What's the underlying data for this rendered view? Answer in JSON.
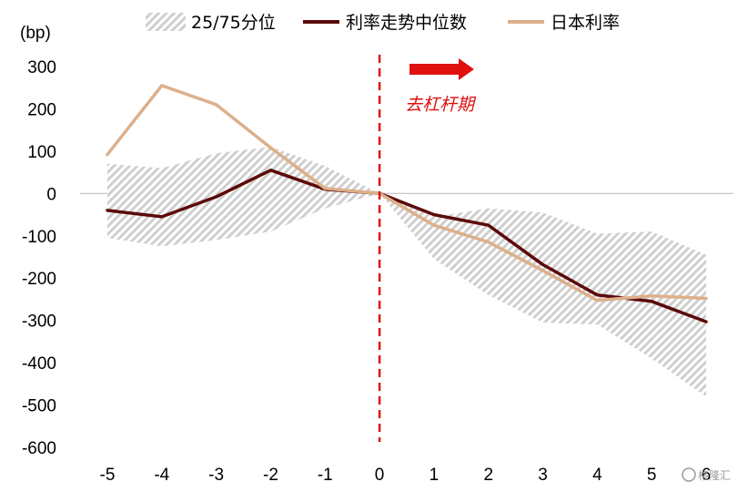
{
  "chart_data": {
    "type": "line",
    "unit_label": "(bp)",
    "x": [
      -5,
      -4,
      -3,
      -2,
      -1,
      0,
      1,
      2,
      3,
      4,
      5,
      6
    ],
    "x_tick_labels": [
      "-5",
      "-4",
      "-3",
      "-2",
      "-1",
      "0",
      "1",
      "2",
      "3",
      "4",
      "5",
      "6"
    ],
    "ylim": [
      -600,
      300
    ],
    "y_ticks": [
      300,
      200,
      100,
      0,
      -100,
      -200,
      -300,
      -400,
      -500,
      -600
    ],
    "y_tick_labels": [
      "300",
      "200",
      "100",
      "0",
      "-100",
      "-200",
      "-300",
      "-400",
      "-500",
      "-600"
    ],
    "band": {
      "name": "25/75分位",
      "color": "#c8c8c8",
      "upper": [
        70,
        60,
        95,
        110,
        65,
        0,
        -55,
        -35,
        -45,
        -95,
        -90,
        -145
      ],
      "lower": [
        -105,
        -125,
        -110,
        -90,
        -35,
        0,
        -155,
        -240,
        -305,
        -310,
        -390,
        -480
      ]
    },
    "series": [
      {
        "name": "利率走势中位数",
        "color": "#5c0a0a",
        "values": [
          -40,
          -55,
          -8,
          55,
          10,
          0,
          -50,
          -75,
          -168,
          -240,
          -255,
          -303
        ]
      },
      {
        "name": "日本利率",
        "color": "#ddb08a",
        "values": [
          92,
          255,
          210,
          108,
          12,
          0,
          -75,
          -115,
          -182,
          -253,
          -242,
          -248
        ]
      }
    ],
    "zero_line": true,
    "vertical_marker": {
      "x": 0,
      "color": "#e01010",
      "style": "dashed"
    },
    "annotation": {
      "text": "去杠杆期",
      "color": "#e01010"
    },
    "legend_placement": "top"
  },
  "watermark": {
    "text": "格隆汇"
  }
}
